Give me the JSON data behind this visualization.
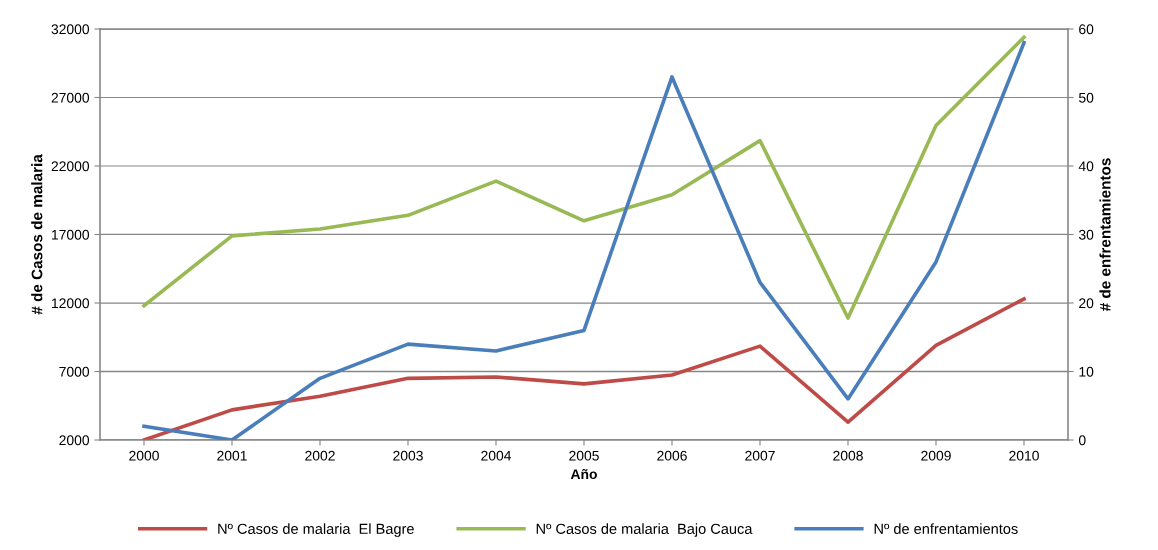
{
  "chart_data": {
    "type": "line",
    "xlabel": "Año",
    "ylabel": "# de Casos de malaria",
    "y2label": "# de enfrentamientos",
    "categories": [
      "2000",
      "2001",
      "2002",
      "2003",
      "2004",
      "2005",
      "2006",
      "2007",
      "2008",
      "2009",
      "2010"
    ],
    "series": [
      {
        "name": "Nº Casos de malaria  El Bagre",
        "color": "#be4b48",
        "values": [
          2000,
          4200,
          5200,
          6500,
          6600,
          6100,
          6750,
          8850,
          3300,
          8900,
          12300
        ]
      },
      {
        "name": "Nº Casos de malaria  Bajo Cauca",
        "color": "#98b954",
        "values": [
          11800,
          16900,
          17400,
          18400,
          20900,
          18000,
          19900,
          23850,
          10900,
          24950,
          31400
        ]
      },
      {
        "name": "Nº de enfrentamientos",
        "color": "#4a7ebb",
        "axis": "y2",
        "values": [
          2,
          0,
          9,
          14,
          13,
          16,
          53,
          23,
          6,
          26,
          58
        ]
      }
    ],
    "ylim": [
      2000,
      32000
    ],
    "yticks": [
      2000,
      7000,
      12000,
      17000,
      22000,
      27000,
      32000
    ],
    "y2lim": [
      0,
      60
    ],
    "y2ticks": [
      0,
      10,
      20,
      30,
      40,
      50,
      60
    ],
    "grid": "y",
    "legend": "bottom",
    "marker": "none",
    "line_style": "solid"
  }
}
